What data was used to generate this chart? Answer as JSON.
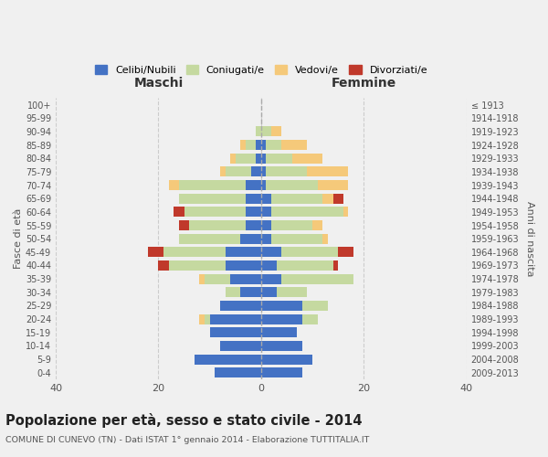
{
  "age_groups": [
    "0-4",
    "5-9",
    "10-14",
    "15-19",
    "20-24",
    "25-29",
    "30-34",
    "35-39",
    "40-44",
    "45-49",
    "50-54",
    "55-59",
    "60-64",
    "65-69",
    "70-74",
    "75-79",
    "80-84",
    "85-89",
    "90-94",
    "95-99",
    "100+"
  ],
  "birth_years": [
    "2009-2013",
    "2004-2008",
    "1999-2003",
    "1994-1998",
    "1989-1993",
    "1984-1988",
    "1979-1983",
    "1974-1978",
    "1969-1973",
    "1964-1968",
    "1959-1963",
    "1954-1958",
    "1949-1953",
    "1944-1948",
    "1939-1943",
    "1934-1938",
    "1929-1933",
    "1924-1928",
    "1919-1923",
    "1914-1918",
    "≤ 1913"
  ],
  "males": {
    "celibi": [
      9,
      13,
      8,
      10,
      10,
      8,
      4,
      6,
      7,
      7,
      4,
      3,
      3,
      3,
      3,
      2,
      1,
      1,
      0,
      0,
      0
    ],
    "coniugati": [
      0,
      0,
      0,
      0,
      1,
      0,
      3,
      5,
      11,
      12,
      12,
      11,
      12,
      13,
      13,
      5,
      4,
      2,
      1,
      0,
      0
    ],
    "vedovi": [
      0,
      0,
      0,
      0,
      1,
      0,
      0,
      1,
      0,
      0,
      0,
      0,
      0,
      0,
      2,
      1,
      1,
      1,
      0,
      0,
      0
    ],
    "divorziati": [
      0,
      0,
      0,
      0,
      0,
      0,
      0,
      0,
      2,
      3,
      0,
      2,
      2,
      0,
      0,
      0,
      0,
      0,
      0,
      0,
      0
    ]
  },
  "females": {
    "nubili": [
      8,
      10,
      8,
      7,
      8,
      8,
      3,
      4,
      3,
      4,
      2,
      2,
      2,
      2,
      1,
      1,
      1,
      1,
      0,
      0,
      0
    ],
    "coniugate": [
      0,
      0,
      0,
      0,
      3,
      5,
      6,
      14,
      11,
      11,
      10,
      8,
      14,
      10,
      10,
      8,
      5,
      3,
      2,
      0,
      0
    ],
    "vedove": [
      0,
      0,
      0,
      0,
      0,
      0,
      0,
      0,
      0,
      0,
      1,
      2,
      1,
      2,
      6,
      8,
      6,
      5,
      2,
      0,
      0
    ],
    "divorziate": [
      0,
      0,
      0,
      0,
      0,
      0,
      0,
      0,
      1,
      3,
      0,
      0,
      0,
      2,
      0,
      0,
      0,
      0,
      0,
      0,
      0
    ]
  },
  "colors": {
    "celibi_nubili": "#4472c4",
    "coniugati": "#c5d9a0",
    "vedovi": "#f5c97a",
    "divorziati": "#c0392b"
  },
  "xlim": 40,
  "title": "Popolazione per età, sesso e stato civile - 2014",
  "subtitle": "COMUNE DI CUNEVO (TN) - Dati ISTAT 1° gennaio 2014 - Elaborazione TUTTITALIA.IT",
  "xlabel_left": "Maschi",
  "xlabel_right": "Femmine",
  "ylabel_left": "Fasce di età",
  "ylabel_right": "Anni di nascita",
  "legend_labels": [
    "Celibi/Nubili",
    "Coniugati/e",
    "Vedovi/e",
    "Divorziati/e"
  ],
  "background_color": "#f0f0f0",
  "bar_height": 0.75
}
